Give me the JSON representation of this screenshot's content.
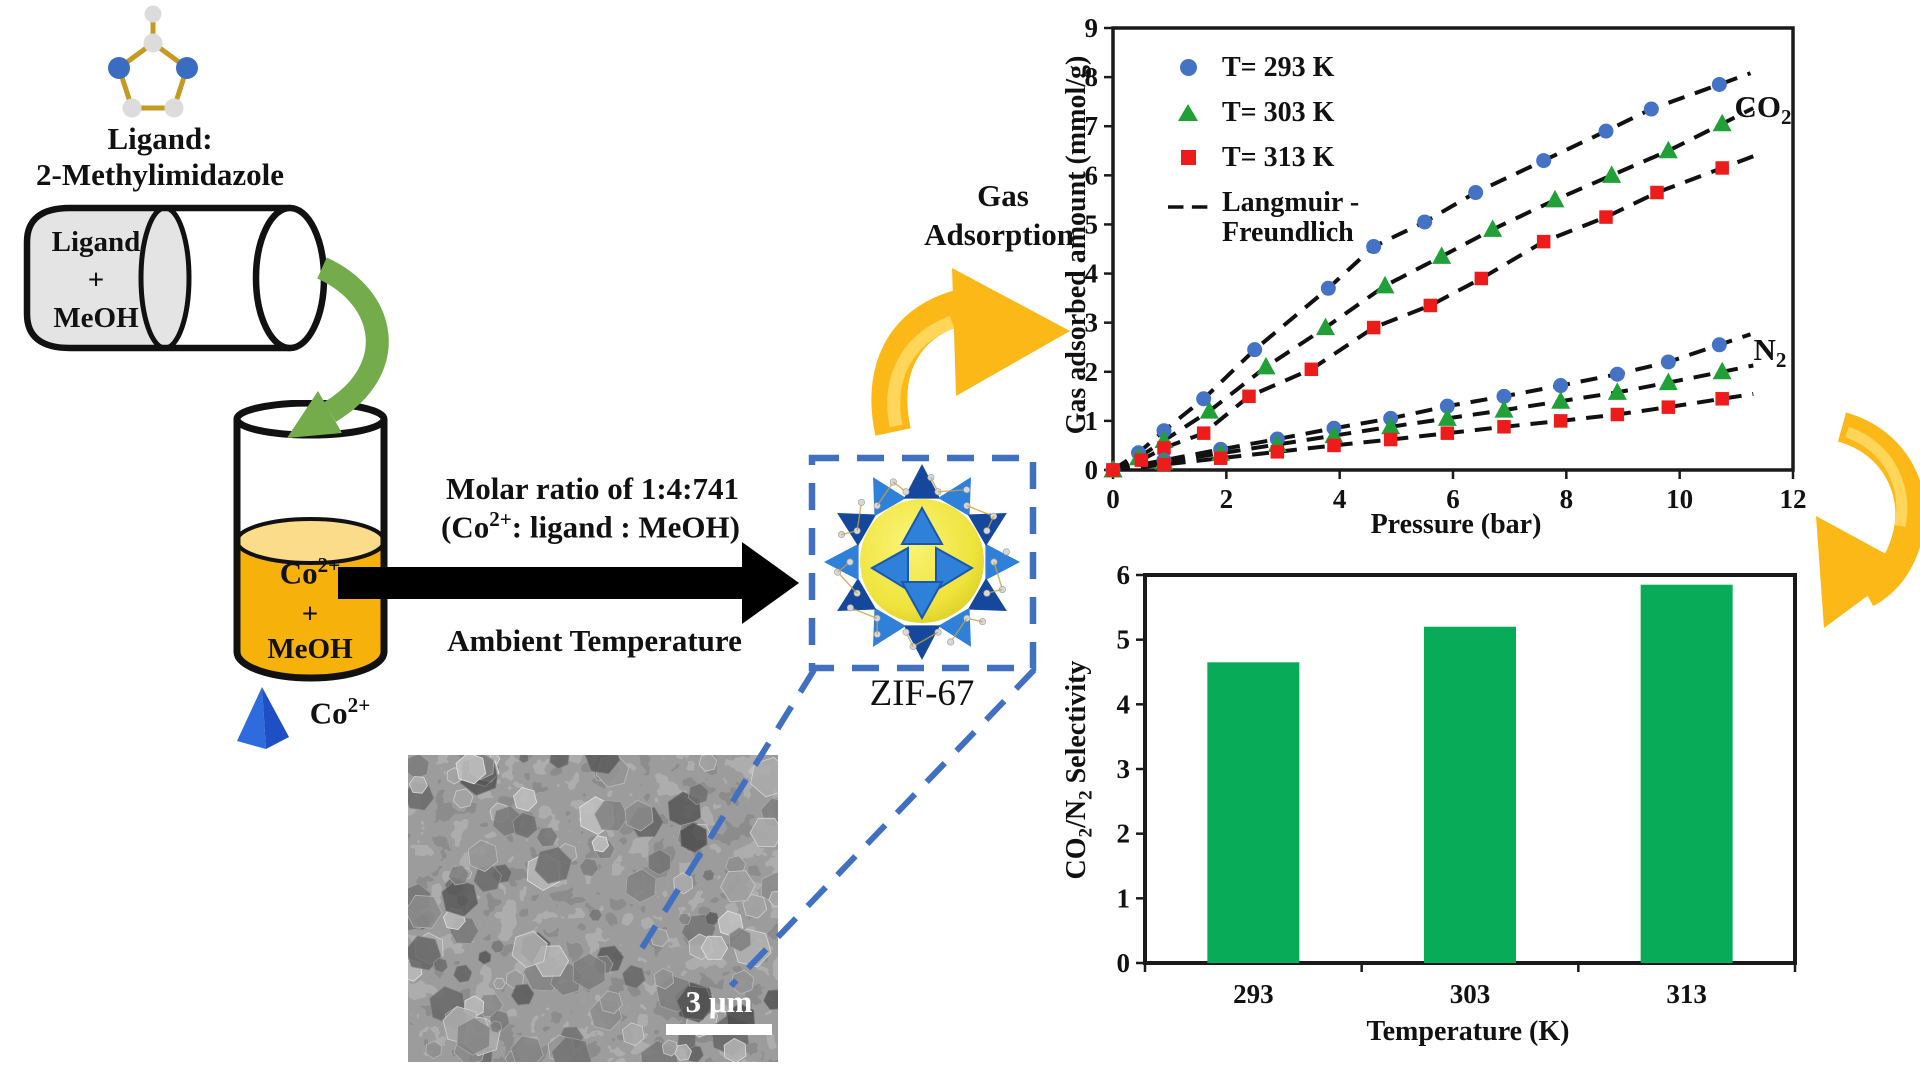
{
  "left_panel": {
    "molecule_caption": {
      "line1": "Ligand:",
      "line2": "2-Methylimidazole"
    },
    "cylinder_label": {
      "line1": "Ligand",
      "line2": "+",
      "line3": "MeOH"
    },
    "beaker_label": {
      "l1_base": "Co",
      "l1_sup": "2+",
      "l2": "+",
      "l3": "MeOH"
    },
    "cobalt_legend": {
      "base": "Co",
      "sup": "2+"
    }
  },
  "reaction": {
    "molar_line1": "Molar ratio of 1:4:741",
    "molar_line2": {
      "p1": "(Co",
      "sup": "2+",
      "p2": ": ligand : MeOH)"
    },
    "condition": "Ambient Temperature"
  },
  "zif": {
    "label": "ZIF-67"
  },
  "sem": {
    "scale_label": "3 μm"
  },
  "gas_adsorption": {
    "line1": "Gas",
    "line2": "Adsorption"
  },
  "colors": {
    "marker_blue": "#4472C4",
    "marker_green": "#21A038",
    "marker_red": "#EE1B1B",
    "bar_green": "#08AB57",
    "callout_blue": "#4170C0",
    "arrow_yellow": "#FBB817",
    "arrow_green": "#74AC4C",
    "beaker_liquid": "#F6B10B"
  },
  "chart_data": [
    {
      "type": "scatter",
      "title": "",
      "xlabel": "Pressure (bar)",
      "ylabel": "Gas adsorbed amount (mmol/g)",
      "xlim": [
        0,
        12
      ],
      "ylim": [
        0,
        9
      ],
      "xticks": [
        0,
        2,
        4,
        6,
        8,
        10,
        12
      ],
      "yticks": [
        0,
        1,
        2,
        3,
        4,
        5,
        6,
        7,
        8,
        9
      ],
      "grid": false,
      "legend_position": "upper-left-inside",
      "legend": [
        {
          "label": "T= 293 K",
          "marker": "circle",
          "color": "#4472C4"
        },
        {
          "label": "T= 303 K",
          "marker": "triangle",
          "color": "#21A038"
        },
        {
          "label": "T= 313 K",
          "marker": "square",
          "color": "#EE1B1B"
        }
      ],
      "legend_fit": {
        "line1": "Langmuir -",
        "line2": "Freundlich"
      },
      "annotations": {
        "co2": {
          "base": "CO",
          "sub": "2"
        },
        "n2": {
          "base": "N",
          "sub": "2"
        }
      },
      "series": [
        {
          "name": "CO2 T=293K",
          "gas": "CO2",
          "temperature_K": 293,
          "marker": "circle",
          "color": "#4472C4",
          "points": [
            [
              0,
              0
            ],
            [
              0.45,
              0.35
            ],
            [
              0.9,
              0.8
            ],
            [
              1.6,
              1.45
            ],
            [
              2.5,
              2.45
            ],
            [
              3.8,
              3.7
            ],
            [
              4.6,
              4.55
            ],
            [
              5.5,
              5.05
            ],
            [
              6.4,
              5.65
            ],
            [
              7.6,
              6.3
            ],
            [
              8.7,
              6.9
            ],
            [
              9.5,
              7.35
            ],
            [
              10.7,
              7.85
            ]
          ]
        },
        {
          "name": "CO2 T=303K",
          "gas": "CO2",
          "temperature_K": 303,
          "marker": "triangle",
          "color": "#21A038",
          "points": [
            [
              0,
              0
            ],
            [
              0.45,
              0.25
            ],
            [
              0.9,
              0.6
            ],
            [
              1.7,
              1.2
            ],
            [
              2.7,
              2.1
            ],
            [
              3.75,
              2.9
            ],
            [
              4.8,
              3.75
            ],
            [
              5.8,
              4.35
            ],
            [
              6.7,
              4.9
            ],
            [
              7.8,
              5.5
            ],
            [
              8.8,
              6.0
            ],
            [
              9.8,
              6.5
            ],
            [
              10.75,
              7.05
            ]
          ]
        },
        {
          "name": "CO2 T=313K",
          "gas": "CO2",
          "temperature_K": 313,
          "marker": "square",
          "color": "#EE1B1B",
          "points": [
            [
              0,
              0
            ],
            [
              0.5,
              0.2
            ],
            [
              0.9,
              0.45
            ],
            [
              1.6,
              0.75
            ],
            [
              2.4,
              1.5
            ],
            [
              3.5,
              2.05
            ],
            [
              4.6,
              2.9
            ],
            [
              5.6,
              3.35
            ],
            [
              6.5,
              3.9
            ],
            [
              7.6,
              4.65
            ],
            [
              8.7,
              5.15
            ],
            [
              9.6,
              5.65
            ],
            [
              10.75,
              6.15
            ]
          ]
        },
        {
          "name": "N2 T=293K",
          "gas": "N2",
          "temperature_K": 293,
          "marker": "circle",
          "color": "#4472C4",
          "points": [
            [
              0,
              0
            ],
            [
              0.9,
              0.2
            ],
            [
              1.9,
              0.42
            ],
            [
              2.9,
              0.63
            ],
            [
              3.9,
              0.85
            ],
            [
              4.9,
              1.05
            ],
            [
              5.9,
              1.3
            ],
            [
              6.9,
              1.5
            ],
            [
              7.9,
              1.72
            ],
            [
              8.9,
              1.95
            ],
            [
              9.8,
              2.2
            ],
            [
              10.7,
              2.55
            ]
          ]
        },
        {
          "name": "N2 T=303K",
          "gas": "N2",
          "temperature_K": 303,
          "marker": "triangle",
          "color": "#21A038",
          "points": [
            [
              0,
              0
            ],
            [
              0.9,
              0.16
            ],
            [
              1.9,
              0.34
            ],
            [
              2.9,
              0.52
            ],
            [
              3.9,
              0.7
            ],
            [
              4.9,
              0.88
            ],
            [
              5.9,
              1.05
            ],
            [
              6.9,
              1.22
            ],
            [
              7.9,
              1.4
            ],
            [
              8.9,
              1.58
            ],
            [
              9.8,
              1.78
            ],
            [
              10.75,
              2.0
            ]
          ]
        },
        {
          "name": "N2 T=313K",
          "gas": "N2",
          "temperature_K": 313,
          "marker": "square",
          "color": "#EE1B1B",
          "points": [
            [
              0,
              0
            ],
            [
              0.9,
              0.11
            ],
            [
              1.9,
              0.24
            ],
            [
              2.9,
              0.37
            ],
            [
              3.9,
              0.5
            ],
            [
              4.9,
              0.62
            ],
            [
              5.9,
              0.75
            ],
            [
              6.9,
              0.88
            ],
            [
              7.9,
              1.0
            ],
            [
              8.9,
              1.13
            ],
            [
              9.8,
              1.28
            ],
            [
              10.75,
              1.45
            ]
          ]
        }
      ],
      "fit_line_style": "dashed-black"
    },
    {
      "type": "bar",
      "categories": [
        "293",
        "303",
        "313"
      ],
      "values": [
        4.65,
        5.2,
        5.85
      ],
      "xlabel": "Temperature (K)",
      "ylabel_parts": {
        "p1": "CO",
        "s1": "2",
        "p2": "/N",
        "s2": "2",
        "p3": " Selectivity"
      },
      "ylim": [
        0,
        6
      ],
      "yticks": [
        0,
        1,
        2,
        3,
        4,
        5,
        6
      ],
      "bar_color": "#08AB57",
      "grid": false
    }
  ]
}
